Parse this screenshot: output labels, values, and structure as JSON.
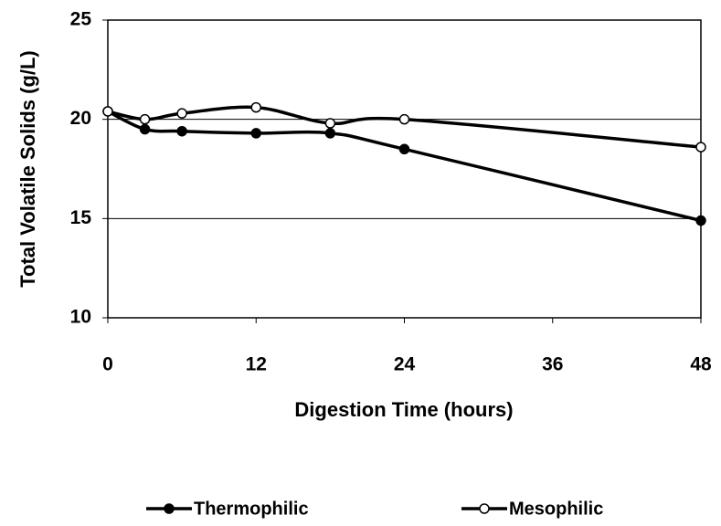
{
  "chart_data": {
    "type": "line",
    "x_label": "Digestion Time (hours)",
    "y_label": "Total Volatile Solids (g/L)",
    "x": [
      0,
      3,
      6,
      12,
      18,
      24,
      48
    ],
    "series": [
      {
        "name": "Thermophilic",
        "color": "#000000",
        "marker_fill": "#000000",
        "values": [
          20.4,
          19.5,
          19.4,
          19.3,
          19.3,
          18.5,
          14.9
        ]
      },
      {
        "name": "Mesophilic",
        "color": "#000000",
        "marker_fill": "#ffffff",
        "values": [
          20.4,
          20.0,
          20.3,
          20.6,
          19.8,
          20.0,
          18.6
        ]
      }
    ],
    "xlim": [
      0,
      48
    ],
    "xticks": [
      0,
      12,
      24,
      36,
      48
    ],
    "ylim": [
      10,
      25
    ],
    "yticks": [
      10,
      15,
      20,
      25
    ],
    "grid": true,
    "legend": "bottom"
  }
}
